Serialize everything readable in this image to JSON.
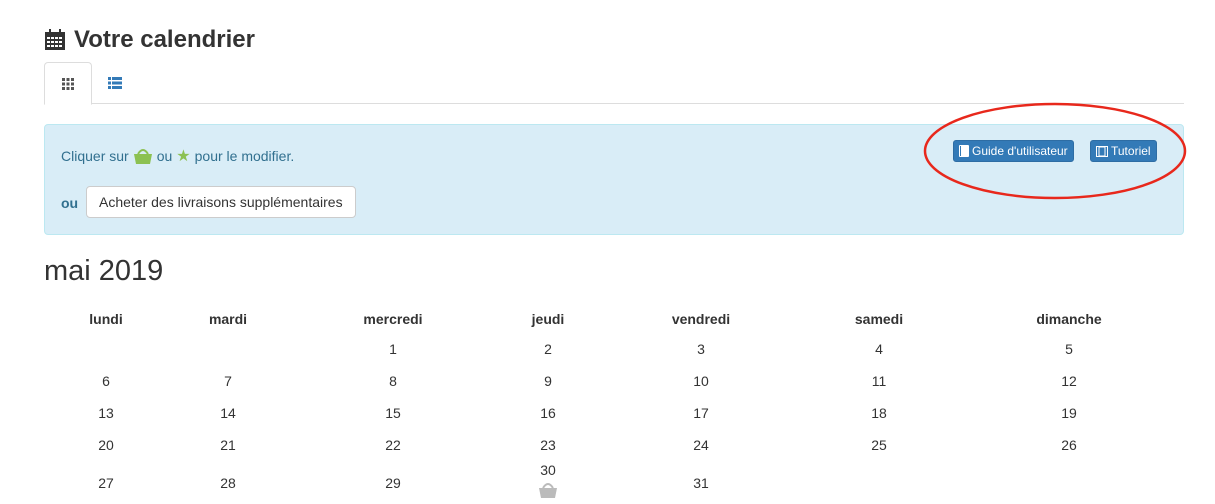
{
  "header": {
    "title": "Votre calendrier",
    "icon": "calendar-icon"
  },
  "tabs": [
    {
      "icon": "grid-icon",
      "active": true
    },
    {
      "icon": "list-icon",
      "active": false
    }
  ],
  "alert": {
    "msg_before": "Cliquer sur",
    "msg_ou": "ou",
    "msg_after": "pour le modifier.",
    "or_label": "ou",
    "buy_button": "Acheter des livraisons supplémentaires",
    "guide_button": "Guide d'utilisateur",
    "tutorial_button": "Tutoriel"
  },
  "calendar": {
    "month": "mai 2019",
    "days": [
      "lundi",
      "mardi",
      "mercredi",
      "jeudi",
      "vendredi",
      "samedi",
      "dimanche"
    ],
    "weeks": [
      [
        "",
        "",
        "1",
        "2",
        "3",
        "4",
        "5"
      ],
      [
        "6",
        "7",
        "8",
        "9",
        "10",
        "11",
        "12"
      ],
      [
        "13",
        "14",
        "15",
        "16",
        "17",
        "18",
        "19"
      ],
      [
        "20",
        "21",
        "22",
        "23",
        "24",
        "25",
        "26"
      ],
      [
        "27",
        "28",
        "29",
        "30",
        "31",
        "",
        ""
      ]
    ]
  },
  "colors": {
    "accent": "#337ab7",
    "basket": "#8cc152",
    "annotation": "#e8281c"
  }
}
